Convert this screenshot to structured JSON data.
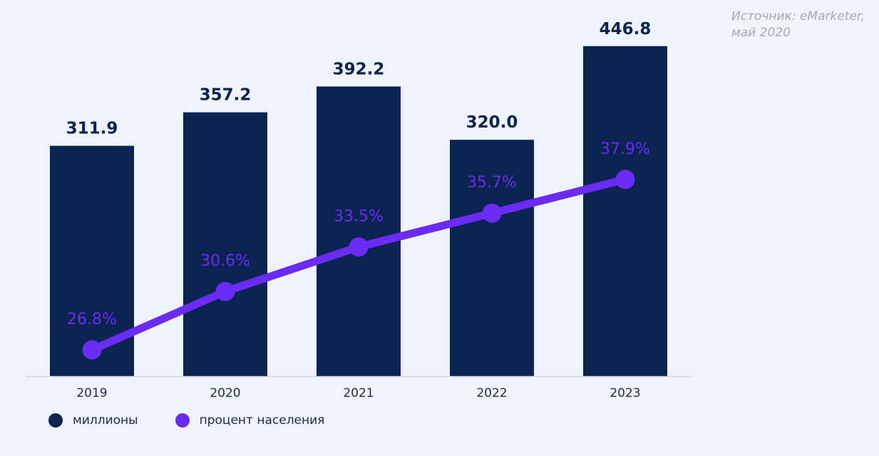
{
  "source": {
    "line1": "Источник: eMarketer,",
    "line2": "май 2020"
  },
  "legend": {
    "bars_label": "миллионы",
    "line_label": "процент населения"
  },
  "colors": {
    "bar": "#0a2351",
    "line": "#6a2cf5",
    "axis": "#d3d9e8",
    "bar_label": "#0a2351",
    "tick": "#1b2b4d"
  },
  "chart_data": {
    "type": "bar",
    "categories": [
      "2019",
      "2020",
      "2021",
      "2022",
      "2023"
    ],
    "series": [
      {
        "name": "миллионы",
        "type": "bar",
        "values": [
          311.9,
          357.2,
          392.2,
          320.0,
          446.8
        ],
        "labels": [
          "311.9",
          "357.2",
          "392.2",
          "320.0",
          "446.8"
        ]
      },
      {
        "name": "процент населения",
        "type": "line",
        "values": [
          26.8,
          30.6,
          33.5,
          35.7,
          37.9
        ],
        "labels": [
          "26.8%",
          "30.6%",
          "33.5%",
          "35.7%",
          "37.9%"
        ]
      }
    ],
    "title": "",
    "xlabel": "",
    "ylabel": "",
    "grid": false,
    "legend_position": "bottom-left"
  }
}
